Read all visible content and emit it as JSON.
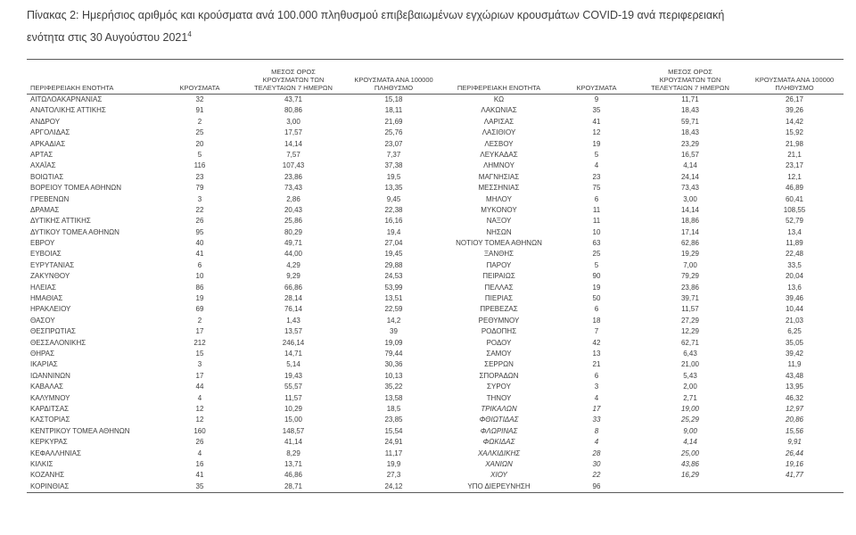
{
  "title": {
    "line1": "Πίνακας 2:  Ημερήσιος αριθμός και κρούσματα ανά 100.000 πληθυσμού επιβεβαιωμένων εγχώριων κρουσμάτων COVID-19 ανά περιφερειακή",
    "line2": "ενότητα στις 30 Αυγούστου 2021",
    "footnote": "4"
  },
  "table": {
    "headers": {
      "region": "ΠΕΡΙΦΕΡΕΙΑΚΗ ΕΝΟΤΗΤΑ",
      "cases": "ΚΡΟΥΣΜΑΤΑ",
      "avg7": "ΜΕΣΟΣ ΟΡΟΣ ΚΡΟΥΣΜΑΤΩΝ ΤΩΝ ΤΕΛΕΥΤΑΙΩΝ 7 ΗΜΕΡΩΝ",
      "per100k": "ΚΡΟΥΣΜΑΤΑ ΑΝΑ 100000 ΠΛΗΘΥΣΜΟ"
    },
    "left_rows": [
      {
        "region": "ΑΙΤΩΛΟΑΚΑΡΝΑΝΙΑΣ",
        "cases": "32",
        "avg7": "43,71",
        "per100k": "15,18"
      },
      {
        "region": "ΑΝΑΤΟΛΙΚΗΣ ΑΤΤΙΚΗΣ",
        "cases": "91",
        "avg7": "80,86",
        "per100k": "18,11"
      },
      {
        "region": "ΑΝΔΡΟΥ",
        "cases": "2",
        "avg7": "3,00",
        "per100k": "21,69"
      },
      {
        "region": "ΑΡΓΟΛΙΔΑΣ",
        "cases": "25",
        "avg7": "17,57",
        "per100k": "25,76"
      },
      {
        "region": "ΑΡΚΑΔΙΑΣ",
        "cases": "20",
        "avg7": "14,14",
        "per100k": "23,07"
      },
      {
        "region": "ΑΡΤΑΣ",
        "cases": "5",
        "avg7": "7,57",
        "per100k": "7,37"
      },
      {
        "region": "ΑΧΑΪΑΣ",
        "cases": "116",
        "avg7": "107,43",
        "per100k": "37,38"
      },
      {
        "region": "ΒΟΙΩΤΙΑΣ",
        "cases": "23",
        "avg7": "23,86",
        "per100k": "19,5"
      },
      {
        "region": "ΒΟΡΕΙΟΥ ΤΟΜΕΑ ΑΘΗΝΩΝ",
        "cases": "79",
        "avg7": "73,43",
        "per100k": "13,35"
      },
      {
        "region": "ΓΡΕΒΕΝΩΝ",
        "cases": "3",
        "avg7": "2,86",
        "per100k": "9,45"
      },
      {
        "region": "ΔΡΑΜΑΣ",
        "cases": "22",
        "avg7": "20,43",
        "per100k": "22,38"
      },
      {
        "region": "ΔΥΤΙΚΗΣ ΑΤΤΙΚΗΣ",
        "cases": "26",
        "avg7": "25,86",
        "per100k": "16,16"
      },
      {
        "region": "ΔΥΤΙΚΟΥ ΤΟΜΕΑ ΑΘΗΝΩΝ",
        "cases": "95",
        "avg7": "80,29",
        "per100k": "19,4"
      },
      {
        "region": "ΕΒΡΟΥ",
        "cases": "40",
        "avg7": "49,71",
        "per100k": "27,04"
      },
      {
        "region": "ΕΥΒΟΙΑΣ",
        "cases": "41",
        "avg7": "44,00",
        "per100k": "19,45"
      },
      {
        "region": "ΕΥΡΥΤΑΝΙΑΣ",
        "cases": "6",
        "avg7": "4,29",
        "per100k": "29,88"
      },
      {
        "region": "ΖΑΚΥΝΘΟΥ",
        "cases": "10",
        "avg7": "9,29",
        "per100k": "24,53"
      },
      {
        "region": "ΗΛΕΙΑΣ",
        "cases": "86",
        "avg7": "66,86",
        "per100k": "53,99"
      },
      {
        "region": "ΗΜΑΘΙΑΣ",
        "cases": "19",
        "avg7": "28,14",
        "per100k": "13,51"
      },
      {
        "region": "ΗΡΑΚΛΕΙΟΥ",
        "cases": "69",
        "avg7": "76,14",
        "per100k": "22,59"
      },
      {
        "region": "ΘΑΣΟΥ",
        "cases": "2",
        "avg7": "1,43",
        "per100k": "14,2"
      },
      {
        "region": "ΘΕΣΠΡΩΤΙΑΣ",
        "cases": "17",
        "avg7": "13,57",
        "per100k": "39"
      },
      {
        "region": "ΘΕΣΣΑΛΟΝΙΚΗΣ",
        "cases": "212",
        "avg7": "246,14",
        "per100k": "19,09"
      },
      {
        "region": "ΘΗΡΑΣ",
        "cases": "15",
        "avg7": "14,71",
        "per100k": "79,44"
      },
      {
        "region": "ΙΚΑΡΙΑΣ",
        "cases": "3",
        "avg7": "5,14",
        "per100k": "30,36"
      },
      {
        "region": "ΙΩΑΝΝΙΝΩΝ",
        "cases": "17",
        "avg7": "19,43",
        "per100k": "10,13"
      },
      {
        "region": "ΚΑΒΑΛΑΣ",
        "cases": "44",
        "avg7": "55,57",
        "per100k": "35,22"
      },
      {
        "region": "ΚΑΛΥΜΝΟΥ",
        "cases": "4",
        "avg7": "11,57",
        "per100k": "13,58"
      },
      {
        "region": "ΚΑΡΔΙΤΣΑΣ",
        "cases": "12",
        "avg7": "10,29",
        "per100k": "18,5"
      },
      {
        "region": "ΚΑΣΤΟΡΙΑΣ",
        "cases": "12",
        "avg7": "15,00",
        "per100k": "23,85"
      },
      {
        "region": "ΚΕΝΤΡΙΚΟΥ ΤΟΜΕΑ ΑΘΗΝΩΝ",
        "cases": "160",
        "avg7": "148,57",
        "per100k": "15,54"
      },
      {
        "region": "ΚΕΡΚΥΡΑΣ",
        "cases": "26",
        "avg7": "41,14",
        "per100k": "24,91"
      },
      {
        "region": "ΚΕΦΑΛΛΗΝΙΑΣ",
        "cases": "4",
        "avg7": "8,29",
        "per100k": "11,17"
      },
      {
        "region": "ΚΙΛΚΙΣ",
        "cases": "16",
        "avg7": "13,71",
        "per100k": "19,9"
      },
      {
        "region": "ΚΟΖΑΝΗΣ",
        "cases": "41",
        "avg7": "46,86",
        "per100k": "27,3"
      },
      {
        "region": "ΚΟΡΙΝΘΙΑΣ",
        "cases": "35",
        "avg7": "28,71",
        "per100k": "24,12"
      }
    ],
    "right_rows": [
      {
        "region": "ΚΩ",
        "cases": "9",
        "avg7": "11,71",
        "per100k": "26,17"
      },
      {
        "region": "ΛΑΚΩΝΙΑΣ",
        "cases": "35",
        "avg7": "18,43",
        "per100k": "39,26"
      },
      {
        "region": "ΛΑΡΙΣΑΣ",
        "cases": "41",
        "avg7": "59,71",
        "per100k": "14,42"
      },
      {
        "region": "ΛΑΣΙΘΙΟΥ",
        "cases": "12",
        "avg7": "18,43",
        "per100k": "15,92"
      },
      {
        "region": "ΛΕΣΒΟΥ",
        "cases": "19",
        "avg7": "23,29",
        "per100k": "21,98"
      },
      {
        "region": "ΛΕΥΚΑΔΑΣ",
        "cases": "5",
        "avg7": "16,57",
        "per100k": "21,1"
      },
      {
        "region": "ΛΗΜΝΟΥ",
        "cases": "4",
        "avg7": "4,14",
        "per100k": "23,17"
      },
      {
        "region": "ΜΑΓΝΗΣΙΑΣ",
        "cases": "23",
        "avg7": "24,14",
        "per100k": "12,1"
      },
      {
        "region": "ΜΕΣΣΗΝΙΑΣ",
        "cases": "75",
        "avg7": "73,43",
        "per100k": "46,89"
      },
      {
        "region": "ΜΗΛΟΥ",
        "cases": "6",
        "avg7": "3,00",
        "per100k": "60,41"
      },
      {
        "region": "ΜΥΚΟΝΟΥ",
        "cases": "11",
        "avg7": "14,14",
        "per100k": "108,55"
      },
      {
        "region": "ΝΑΞΟΥ",
        "cases": "11",
        "avg7": "18,86",
        "per100k": "52,79"
      },
      {
        "region": "ΝΗΣΩΝ",
        "cases": "10",
        "avg7": "17,14",
        "per100k": "13,4"
      },
      {
        "region": "ΝΟΤΙΟΥ ΤΟΜΕΑ ΑΘΗΝΩΝ",
        "cases": "63",
        "avg7": "62,86",
        "per100k": "11,89"
      },
      {
        "region": "ΞΑΝΘΗΣ",
        "cases": "25",
        "avg7": "19,29",
        "per100k": "22,48"
      },
      {
        "region": "ΠΑΡΟΥ",
        "cases": "5",
        "avg7": "7,00",
        "per100k": "33,5"
      },
      {
        "region": "ΠΕΙΡΑΙΩΣ",
        "cases": "90",
        "avg7": "79,29",
        "per100k": "20,04"
      },
      {
        "region": "ΠΕΛΛΑΣ",
        "cases": "19",
        "avg7": "23,86",
        "per100k": "13,6"
      },
      {
        "region": "ΠΙΕΡΙΑΣ",
        "cases": "50",
        "avg7": "39,71",
        "per100k": "39,46"
      },
      {
        "region": "ΠΡΕΒΕΖΑΣ",
        "cases": "6",
        "avg7": "11,57",
        "per100k": "10,44"
      },
      {
        "region": "ΡΕΘΥΜΝΟΥ",
        "cases": "18",
        "avg7": "27,29",
        "per100k": "21,03"
      },
      {
        "region": "ΡΟΔΟΠΗΣ",
        "cases": "7",
        "avg7": "12,29",
        "per100k": "6,25"
      },
      {
        "region": "ΡΟΔΟΥ",
        "cases": "42",
        "avg7": "62,71",
        "per100k": "35,05"
      },
      {
        "region": "ΣΑΜΟΥ",
        "cases": "13",
        "avg7": "6,43",
        "per100k": "39,42"
      },
      {
        "region": "ΣΕΡΡΩΝ",
        "cases": "21",
        "avg7": "21,00",
        "per100k": "11,9"
      },
      {
        "region": "ΣΠΟΡΑΔΩΝ",
        "cases": "6",
        "avg7": "5,43",
        "per100k": "43,48"
      },
      {
        "region": "ΣΥΡΟΥ",
        "cases": "3",
        "avg7": "2,00",
        "per100k": "13,95"
      },
      {
        "region": "ΤΗΝΟΥ",
        "cases": "4",
        "avg7": "2,71",
        "per100k": "46,32"
      },
      {
        "region": "ΤΡΙΚΑΛΩΝ",
        "cases": "17",
        "avg7": "19,00",
        "per100k": "12,97",
        "italic": true
      },
      {
        "region": "ΦΘΙΩΤΙΔΑΣ",
        "cases": "33",
        "avg7": "25,29",
        "per100k": "20,86",
        "italic": true
      },
      {
        "region": "ΦΛΩΡΙΝΑΣ",
        "cases": "8",
        "avg7": "9,00",
        "per100k": "15,56",
        "italic": true
      },
      {
        "region": "ΦΩΚΙΔΑΣ",
        "cases": "4",
        "avg7": "4,14",
        "per100k": "9,91",
        "italic": true
      },
      {
        "region": "ΧΑΛΚΙΔΙΚΗΣ",
        "cases": "28",
        "avg7": "25,00",
        "per100k": "26,44",
        "italic": true
      },
      {
        "region": "ΧΑΝΙΩΝ",
        "cases": "30",
        "avg7": "43,86",
        "per100k": "19,16",
        "italic": true
      },
      {
        "region": "ΧΙΟΥ",
        "cases": "22",
        "avg7": "16,29",
        "per100k": "41,77",
        "italic": true
      },
      {
        "region": "ΥΠΟ ΔΙΕΡΕΥΝΗΣΗ",
        "cases": "96",
        "avg7": "",
        "per100k": ""
      }
    ]
  }
}
